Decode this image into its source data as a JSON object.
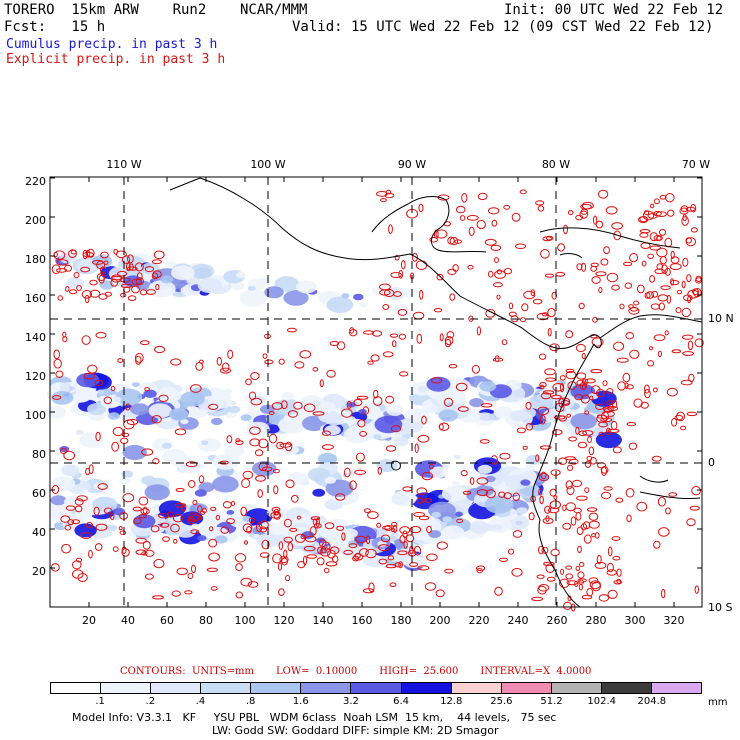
{
  "header": {
    "model_line": "TORERO  15km ARW    Run2    NCAR/MMM",
    "init": "Init: 00 UTC Wed 22 Feb 12",
    "fcst": "Fcst:   15 h",
    "valid": "Valid: 15 UTC Wed 22 Feb 12 (09 CST Wed 22 Feb 12)",
    "field1": "Cumulus precip. in past 3 h",
    "field2": "Explicit precip. in past 3 h"
  },
  "colors": {
    "field1": "#1a1ad6",
    "field2": "#d41616",
    "contour": "#e01010",
    "coast": "#000000"
  },
  "map": {
    "lon_labels": [
      "110 W",
      "100 W",
      "90 W",
      "80 W",
      "70 W"
    ],
    "lat_labels": [
      "10 N",
      "0",
      "10 S"
    ],
    "y_ticks": [
      "220",
      "200",
      "180",
      "160",
      "140",
      "120",
      "100",
      "80",
      "60",
      "40",
      "20"
    ],
    "x_ticks": [
      "20",
      "40",
      "60",
      "80",
      "100",
      "120",
      "140",
      "160",
      "180",
      "200",
      "220",
      "240",
      "260",
      "280",
      "300",
      "320"
    ]
  },
  "contours_info": {
    "title": "CONTOURS:  UNITS=mm",
    "low": "LOW=  0.10000",
    "high": "HIGH=  25.600",
    "interval": "INTERVAL=X  4.0000"
  },
  "legend": {
    "labels": [
      ".1",
      ".2",
      ".4",
      ".8",
      "1.6",
      "3.2",
      "6.4",
      "12.8",
      "25.6",
      "51.2",
      "102.4",
      "204.8"
    ],
    "colors": [
      "#ffffff",
      "#eef4fc",
      "#dfe9fa",
      "#c8dcf6",
      "#a9c5f0",
      "#8a96e8",
      "#5a5ae6",
      "#1414e0",
      "#fad2d2",
      "#f08cb4",
      "#b4b4b4",
      "#3c3c3c",
      "#d8a8f0"
    ],
    "unit": "mm"
  },
  "model_info": {
    "line1": "Model Info: V3.3.1   KF     YSU PBL   WDM 6class  Noah LSM  15 km,    44 levels,   75 sec",
    "line2": "LW: Godd SW: Goddard DIFF: simple KM: 2D Smagor"
  }
}
